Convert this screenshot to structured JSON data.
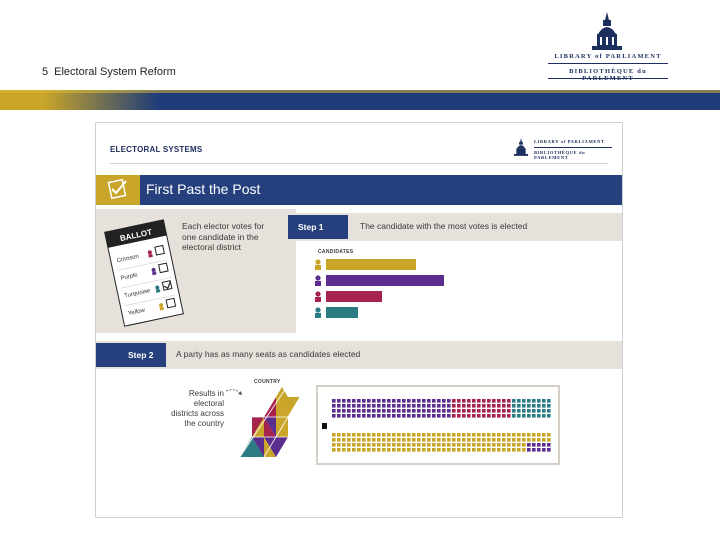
{
  "slide": {
    "number": "5",
    "title": "Electoral System Reform"
  },
  "logo": {
    "line1": "LIBRARY of PARLIAMENT",
    "line2": "BIBLIOTHÈQUE du PARLEMENT"
  },
  "colors": {
    "navy": "#25407c",
    "gold": "#c9a629",
    "purple": "#5b2d8e",
    "crimson": "#a6234d",
    "teal": "#2a7b82",
    "beige": "#e6e1da"
  },
  "infographic": {
    "header": "ELECTORAL SYSTEMS",
    "logo": {
      "line1": "LIBRARY of PARLIAMENT",
      "line2": "BIBLIOTHÈQUE du PARLEMENT"
    },
    "section_title": "First Past the Post",
    "ballot": {
      "title": "BALLOT",
      "options": [
        "Crimson",
        "Purple",
        "Turquoise",
        "Yellow"
      ],
      "checked_index": 2
    },
    "elector_text": "Each elector votes for one candidate in the electoral district",
    "step1": {
      "label": "Step 1",
      "text": "The candidate with the most votes is elected"
    },
    "candidates_label": "CANDIDATES",
    "candidates": [
      {
        "name": "Yellow",
        "color": "#c9a629",
        "votes": 90
      },
      {
        "name": "Purple",
        "color": "#5b2d8e",
        "votes": 118
      },
      {
        "name": "Crimson",
        "color": "#a6234d",
        "votes": 56
      },
      {
        "name": "Turquoise",
        "color": "#2a7b82",
        "votes": 32
      }
    ],
    "step2": {
      "label": "Step 2",
      "text": "A party has as many seats as candidates elected"
    },
    "results_text": "Results in electoral districts across the country",
    "country_label": "COUNTRY"
  }
}
